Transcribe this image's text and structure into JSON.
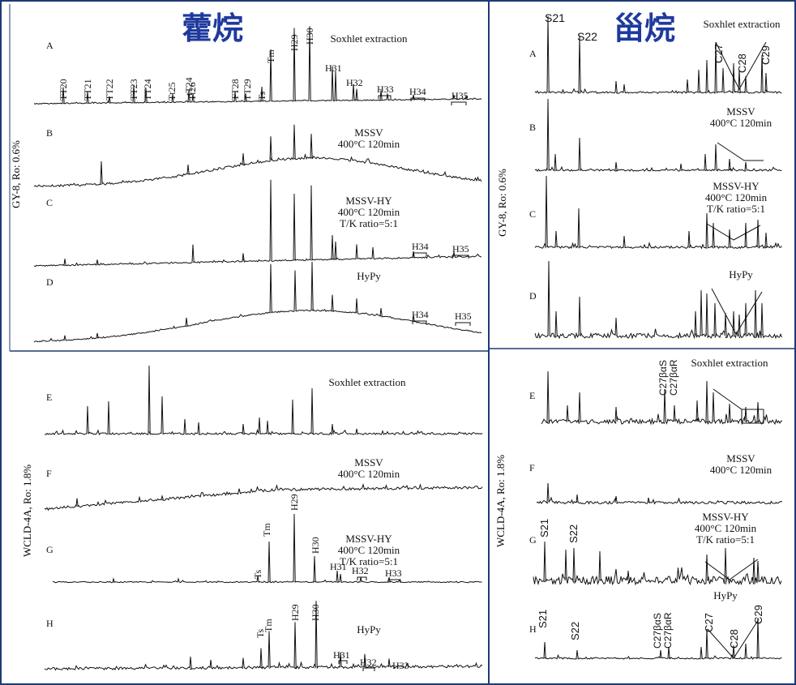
{
  "colors": {
    "frame": "#1f3a75",
    "trace": "#111111",
    "title": "#1f3a9e",
    "background": "#ffffff"
  },
  "chart_data": [
    {
      "type": "line",
      "title": "藿烷",
      "sample_labels": [
        "GY-8, Ro: 0.6%",
        "WCLD-4A, Ro: 1.8%"
      ],
      "panels": [
        {
          "letter": "A",
          "condition": [
            "Soxhlet extraction"
          ],
          "peak_labels": [
            "TT20",
            "TT21",
            "TT22",
            "TT23",
            "TT24",
            "Tt25",
            "tT24",
            "Tt26",
            "TT28",
            "TT29",
            "Ts",
            "Tm",
            "H29",
            "H30",
            "H31",
            "H32",
            "H33",
            "H34",
            "H35"
          ]
        },
        {
          "letter": "B",
          "condition": [
            "MSSV",
            "400°C  120min"
          ],
          "peak_labels": []
        },
        {
          "letter": "C",
          "condition": [
            "MSSV-HY",
            "400°C  120min",
            "T/K ratio=5:1"
          ],
          "peak_labels": [
            "H34",
            "H35"
          ]
        },
        {
          "letter": "D",
          "condition": [
            "HyPy"
          ],
          "peak_labels": [
            "H34",
            "H35"
          ]
        },
        {
          "letter": "E",
          "condition": [
            "Soxhlet extraction"
          ],
          "peak_labels": []
        },
        {
          "letter": "F",
          "condition": [
            "MSSV",
            "400°C  120min"
          ],
          "peak_labels": []
        },
        {
          "letter": "G",
          "condition": [
            "MSSV-HY",
            "400°C  120min",
            "T/K ratio=5:1"
          ],
          "peak_labels": [
            "Ts",
            "Tm",
            "H29",
            "H30",
            "H31",
            "H32",
            "H33"
          ]
        },
        {
          "letter": "H",
          "condition": [
            "HyPy"
          ],
          "peak_labels": [
            "Ts",
            "Tm",
            "H29",
            "H30",
            "H31",
            "H32",
            "H33"
          ]
        }
      ]
    },
    {
      "type": "line",
      "title": "甾烷",
      "sample_labels": [
        "GY-8, Ro: 0.6%",
        "WCLD-4A, Ro: 1.8%"
      ],
      "panels": [
        {
          "letter": "A",
          "condition": [
            "Soxhlet extraction"
          ],
          "peak_labels": [
            "S21",
            "S22",
            "C27",
            "C28",
            "C29"
          ]
        },
        {
          "letter": "B",
          "condition": [
            "MSSV",
            "400°C  120min"
          ],
          "peak_labels": []
        },
        {
          "letter": "C",
          "condition": [
            "MSSV-HY",
            "400°C  120min",
            "T/K ratio=5:1"
          ],
          "peak_labels": []
        },
        {
          "letter": "D",
          "condition": [
            "HyPy"
          ],
          "peak_labels": []
        },
        {
          "letter": "E",
          "condition": [
            "Soxhlet extraction"
          ],
          "peak_labels": [
            "C27βαS",
            "C27βαR"
          ]
        },
        {
          "letter": "F",
          "condition": [
            "MSSV",
            "400°C  120min"
          ],
          "peak_labels": []
        },
        {
          "letter": "G",
          "condition": [
            "MSSV-HY",
            "400°C  120min",
            "T/K ratio=5:1"
          ],
          "peak_labels": [
            "S21",
            "S22"
          ]
        },
        {
          "letter": "H",
          "condition": [
            "HyPy"
          ],
          "peak_labels": [
            "S21",
            "S22",
            "C27βαS",
            "C27βαR",
            "C27",
            "C28",
            "C29"
          ]
        }
      ]
    }
  ]
}
